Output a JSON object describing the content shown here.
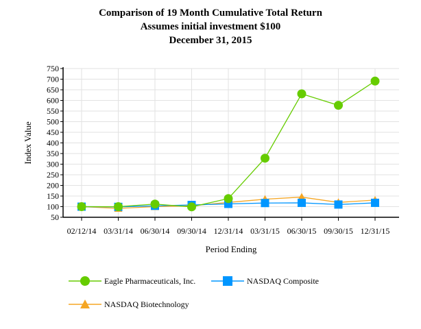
{
  "chart_data": {
    "type": "line",
    "title": [
      "Comparison of  19 Month Cumulative Total Return",
      "Assumes initial investment $100",
      "December 31, 2015"
    ],
    "xlabel": "Period Ending",
    "ylabel": "Index Value",
    "categories": [
      "02/12/14",
      "03/31/14",
      "06/30/14",
      "09/30/14",
      "12/31/14",
      "03/31/15",
      "06/30/15",
      "09/30/15",
      "12/31/15"
    ],
    "ylim": [
      50,
      750
    ],
    "yticks": [
      50,
      100,
      150,
      200,
      250,
      300,
      350,
      400,
      450,
      500,
      550,
      600,
      650,
      700,
      750
    ],
    "grid": true,
    "legend": "bottom",
    "series": [
      {
        "name": "NASDAQ Biotechnology",
        "color": "#f5a623",
        "marker": "triangle",
        "values": [
          100,
          92,
          100,
          104,
          120,
          135,
          145,
          120,
          131
        ]
      },
      {
        "name": "NASDAQ Composite",
        "color": "#0096ff",
        "marker": "square",
        "values": [
          100,
          99,
          104,
          108,
          113,
          117,
          118,
          110,
          118
        ]
      },
      {
        "name": "Eagle Pharmaceuticals, Inc.",
        "color": "#66cc00",
        "marker": "circle",
        "values": [
          100,
          100,
          112,
          99,
          138,
          328,
          631,
          577,
          691
        ]
      }
    ]
  }
}
